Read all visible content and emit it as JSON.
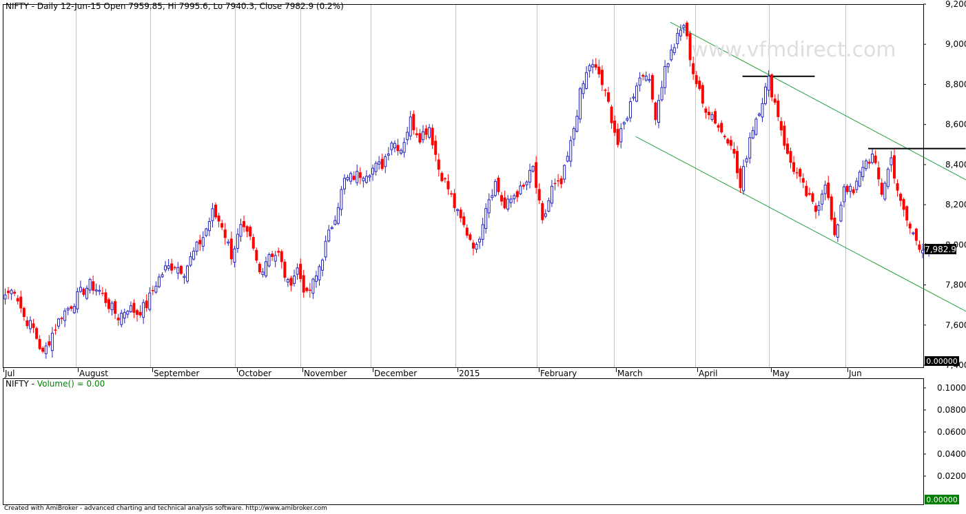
{
  "price_panel": {
    "title": "NIFTY - Daily 12-Jun-15 Open 7959.85, Hi 7995.6, Lo 7940.3, Close 7982.9 (0.2%)",
    "last_value_label": "7,982.9",
    "zero_badge": "0.00000",
    "watermark": "www.vfmdirect.com"
  },
  "volume_panel": {
    "title_prefix": "NIFTY - ",
    "title_series": "Volume() = 0.00",
    "y_ticks": [
      "0.1000",
      "0.0800",
      "0.0600",
      "0.0400",
      "0.0200"
    ],
    "zero_badge": "0.00000"
  },
  "footer": {
    "text": "Created with AmiBroker - advanced charting and technical analysis software. http://www.amibroker.com"
  },
  "colors": {
    "up_candle": "#2020c0",
    "down_candle": "#ff0000",
    "channel": "#20a040",
    "horizontal_levels": "#000000",
    "grid": "#c0c0c0",
    "volume_title": "#008000",
    "zero_badge_price": "#000000",
    "zero_badge_volume": "#008000"
  },
  "chart_data": {
    "type": "candlestick",
    "title": "NIFTY - Daily 12-Jun-15 Open 7959.85, Hi 7995.6, Lo 7940.3, Close 7982.9 (0.2%)",
    "ylim": [
      7400,
      9200
    ],
    "y_ticks": [
      9200,
      9000,
      8800,
      8600,
      8400,
      8200,
      8000,
      7800,
      7600,
      7400
    ],
    "y_tick_labels": [
      "9,200",
      "9,000",
      "8,800",
      "8,600",
      "8,400",
      "8,200",
      "8,000",
      "7,800",
      "7,600",
      "7,400"
    ],
    "x_labels": [
      "Jul",
      "August",
      "September",
      "October",
      "November",
      "December",
      "2015",
      "February",
      "March",
      "April",
      "May",
      "Jun"
    ],
    "grid": true,
    "last_close": 7982.9,
    "close_path": [
      [
        0,
        7750
      ],
      [
        3,
        7780
      ],
      [
        6,
        7640
      ],
      [
        9,
        7580
      ],
      [
        12,
        7450
      ],
      [
        15,
        7560
      ],
      [
        18,
        7650
      ],
      [
        21,
        7700
      ],
      [
        24,
        7760
      ],
      [
        27,
        7800
      ],
      [
        30,
        7770
      ],
      [
        33,
        7700
      ],
      [
        36,
        7640
      ],
      [
        39,
        7690
      ],
      [
        42,
        7660
      ],
      [
        45,
        7700
      ],
      [
        48,
        7810
      ],
      [
        51,
        7880
      ],
      [
        54,
        7900
      ],
      [
        57,
        7870
      ],
      [
        60,
        7960
      ],
      [
        63,
        8040
      ],
      [
        66,
        8160
      ],
      [
        69,
        8100
      ],
      [
        72,
        7950
      ],
      [
        75,
        8080
      ],
      [
        78,
        8020
      ],
      [
        81,
        7860
      ],
      [
        84,
        7960
      ],
      [
        87,
        7950
      ],
      [
        90,
        7800
      ],
      [
        93,
        7880
      ],
      [
        96,
        7740
      ],
      [
        99,
        7840
      ],
      [
        102,
        8000
      ],
      [
        105,
        8150
      ],
      [
        108,
        8320
      ],
      [
        111,
        8340
      ],
      [
        114,
        8360
      ],
      [
        117,
        8380
      ],
      [
        120,
        8400
      ],
      [
        123,
        8520
      ],
      [
        126,
        8480
      ],
      [
        129,
        8620
      ],
      [
        132,
        8540
      ],
      [
        135,
        8590
      ],
      [
        138,
        8380
      ],
      [
        141,
        8280
      ],
      [
        144,
        8150
      ],
      [
        147,
        8060
      ],
      [
        150,
        7980
      ],
      [
        153,
        8200
      ],
      [
        156,
        8310
      ],
      [
        159,
        8180
      ],
      [
        162,
        8250
      ],
      [
        165,
        8280
      ],
      [
        168,
        8380
      ],
      [
        171,
        8100
      ],
      [
        174,
        8280
      ],
      [
        177,
        8300
      ],
      [
        180,
        8500
      ],
      [
        183,
        8750
      ],
      [
        186,
        8900
      ],
      [
        189,
        8850
      ],
      [
        192,
        8700
      ],
      [
        195,
        8500
      ],
      [
        198,
        8650
      ],
      [
        201,
        8810
      ],
      [
        204,
        8870
      ],
      [
        207,
        8650
      ],
      [
        210,
        8880
      ],
      [
        213,
        8995
      ],
      [
        216,
        9100
      ],
      [
        219,
        8860
      ],
      [
        222,
        8700
      ],
      [
        225,
        8650
      ],
      [
        228,
        8560
      ],
      [
        231,
        8520
      ],
      [
        234,
        8280
      ],
      [
        237,
        8540
      ],
      [
        240,
        8680
      ],
      [
        243,
        8820
      ],
      [
        246,
        8650
      ],
      [
        249,
        8440
      ],
      [
        252,
        8350
      ],
      [
        255,
        8250
      ],
      [
        258,
        8170
      ],
      [
        261,
        8320
      ],
      [
        264,
        8020
      ],
      [
        267,
        8300
      ],
      [
        270,
        8250
      ],
      [
        273,
        8400
      ],
      [
        276,
        8440
      ],
      [
        279,
        8260
      ],
      [
        282,
        8430
      ],
      [
        285,
        8200
      ],
      [
        288,
        8080
      ],
      [
        291,
        8000
      ],
      [
        294,
        7982.9
      ]
    ],
    "channel_upper": [
      [
        212,
        9110
      ],
      [
        315,
        8250
      ]
    ],
    "channel_lower": [
      [
        201,
        8540
      ],
      [
        315,
        7595
      ]
    ],
    "resistance_levels": [
      {
        "value": 8840,
        "x_start": 235,
        "x_end": 258
      },
      {
        "value": 8480,
        "x_start": 275,
        "x_end": 306
      }
    ]
  }
}
